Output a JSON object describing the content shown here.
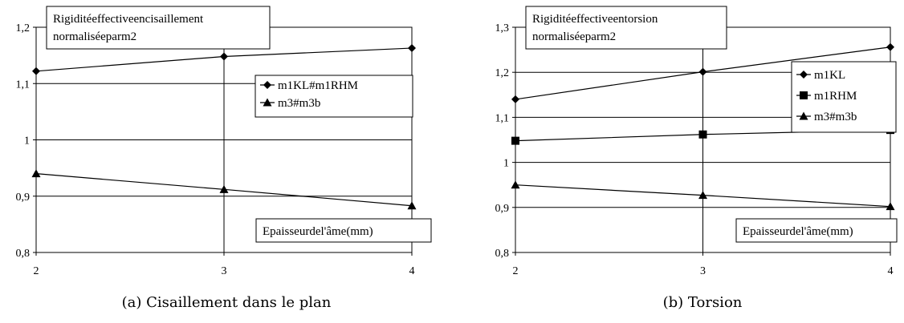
{
  "chart_data": [
    {
      "type": "line",
      "title": "Rigiditéeffectiveencisaillement normaliséeparm2",
      "title_lines": [
        "Rigiditéeffectiveencisaillement",
        "normaliséeparm2"
      ],
      "xlabel": "Epaisseurdel'âme(mm)",
      "x": [
        2,
        3,
        4
      ],
      "x_ticks": [
        "2",
        "3",
        "4"
      ],
      "ylim": [
        0.8,
        1.2
      ],
      "y_ticks": [
        "0,8",
        "0,9",
        "1",
        "1,1",
        "1,2"
      ],
      "grid": "horizontal",
      "legend_position": "right",
      "series": [
        {
          "name": "m1KL#m1RHM",
          "marker": "diamond",
          "values": [
            1.122,
            1.148,
            1.163
          ]
        },
        {
          "name": "m3#m3b",
          "marker": "triangle",
          "values": [
            0.94,
            0.912,
            0.883
          ]
        }
      ],
      "caption": "(a) Cisaillement dans le plan"
    },
    {
      "type": "line",
      "title": "Rigiditéeffectiveentorsion normaliséeparm2",
      "title_lines": [
        "Rigiditéeffectiveentorsion",
        "normaliséeparm2"
      ],
      "xlabel": "Epaisseurdel'âme(mm)",
      "x": [
        2,
        3,
        4
      ],
      "x_ticks": [
        "2",
        "3",
        "4"
      ],
      "ylim": [
        0.8,
        1.3
      ],
      "y_ticks": [
        "0,8",
        "0,9",
        "1",
        "1,1",
        "1,2",
        "1,3"
      ],
      "grid": "horizontal",
      "legend_position": "right",
      "series": [
        {
          "name": "m1KL",
          "marker": "diamond",
          "values": [
            1.14,
            1.201,
            1.256
          ]
        },
        {
          "name": "m1RHM",
          "marker": "square",
          "values": [
            1.048,
            1.062,
            1.072
          ]
        },
        {
          "name": "m3#m3b",
          "marker": "triangle",
          "values": [
            0.95,
            0.927,
            0.902
          ]
        }
      ],
      "caption": "(b) Torsion"
    }
  ]
}
